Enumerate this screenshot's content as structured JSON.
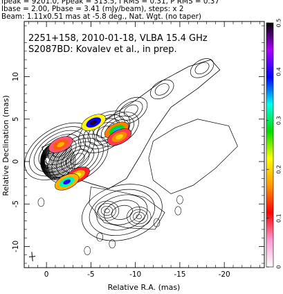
{
  "header": {
    "line1": "Ipeak = 9201.0, Ppeak = 313.5, I RMS = 0.31, P RMS = 0.37",
    "line2": "Ibase = 2.00, Pbase = 3.41 (mJy/beam), steps: x 2",
    "line3": "Beam: 1.11x0.51 mas at -5.8 deg., Nat. Wgt. (no taper)"
  },
  "chart_data": {
    "type": "heatmap",
    "title": "2251+158, 2010-01-18, VLBA 15.4 GHz",
    "subtitle": "S2087BD: Kovalev et al., in prep.",
    "xlabel": "Relative R.A. (mas)",
    "ylabel": "Relative Declination (mas)",
    "xlim": [
      2.5,
      -24.5
    ],
    "ylim": [
      -12.5,
      16.5
    ],
    "xticks": [
      0,
      -5,
      -10,
      -15,
      -20
    ],
    "yticks": [
      10,
      5,
      0,
      -5,
      -10
    ],
    "colorbar": {
      "range": [
        0,
        0.5
      ],
      "ticks": [
        0,
        0.1,
        0.2,
        0.3,
        0.4,
        0.5
      ],
      "colors": [
        "#ffffff",
        "#ff9ad2",
        "#ff0000",
        "#ff9900",
        "#ffff00",
        "#00dd00",
        "#00ffee",
        "#0000ff",
        "#aa00ff",
        "#000000"
      ]
    },
    "core": {
      "x": 0,
      "y": 0
    },
    "jet_knots": [
      {
        "x": -1.5,
        "y": 1.2
      },
      {
        "x": -3.5,
        "y": 0.3
      },
      {
        "x": -6.5,
        "y": 3.5
      },
      {
        "x": -8.0,
        "y": 3.8
      },
      {
        "x": -9.5,
        "y": 6.0
      },
      {
        "x": -13.0,
        "y": 8.5
      },
      {
        "x": -17.5,
        "y": 11.0
      }
    ],
    "polarized_regions": [
      {
        "x": -3.5,
        "y": -1.6,
        "value": 0.22
      },
      {
        "x": -2.3,
        "y": -2.4,
        "value": 0.4
      },
      {
        "x": -1.6,
        "y": 2.0,
        "value": 0.18
      },
      {
        "x": -7.9,
        "y": 3.7,
        "value": 0.35
      },
      {
        "x": -8.2,
        "y": 2.9,
        "value": 0.2
      },
      {
        "x": -5.3,
        "y": 4.6,
        "value": 0.49
      }
    ],
    "southern_complex": {
      "x": -8.5,
      "y": -6.0
    },
    "beam": {
      "major_mas": 1.11,
      "minor_mas": 0.51,
      "pa_deg": -5.8
    }
  }
}
